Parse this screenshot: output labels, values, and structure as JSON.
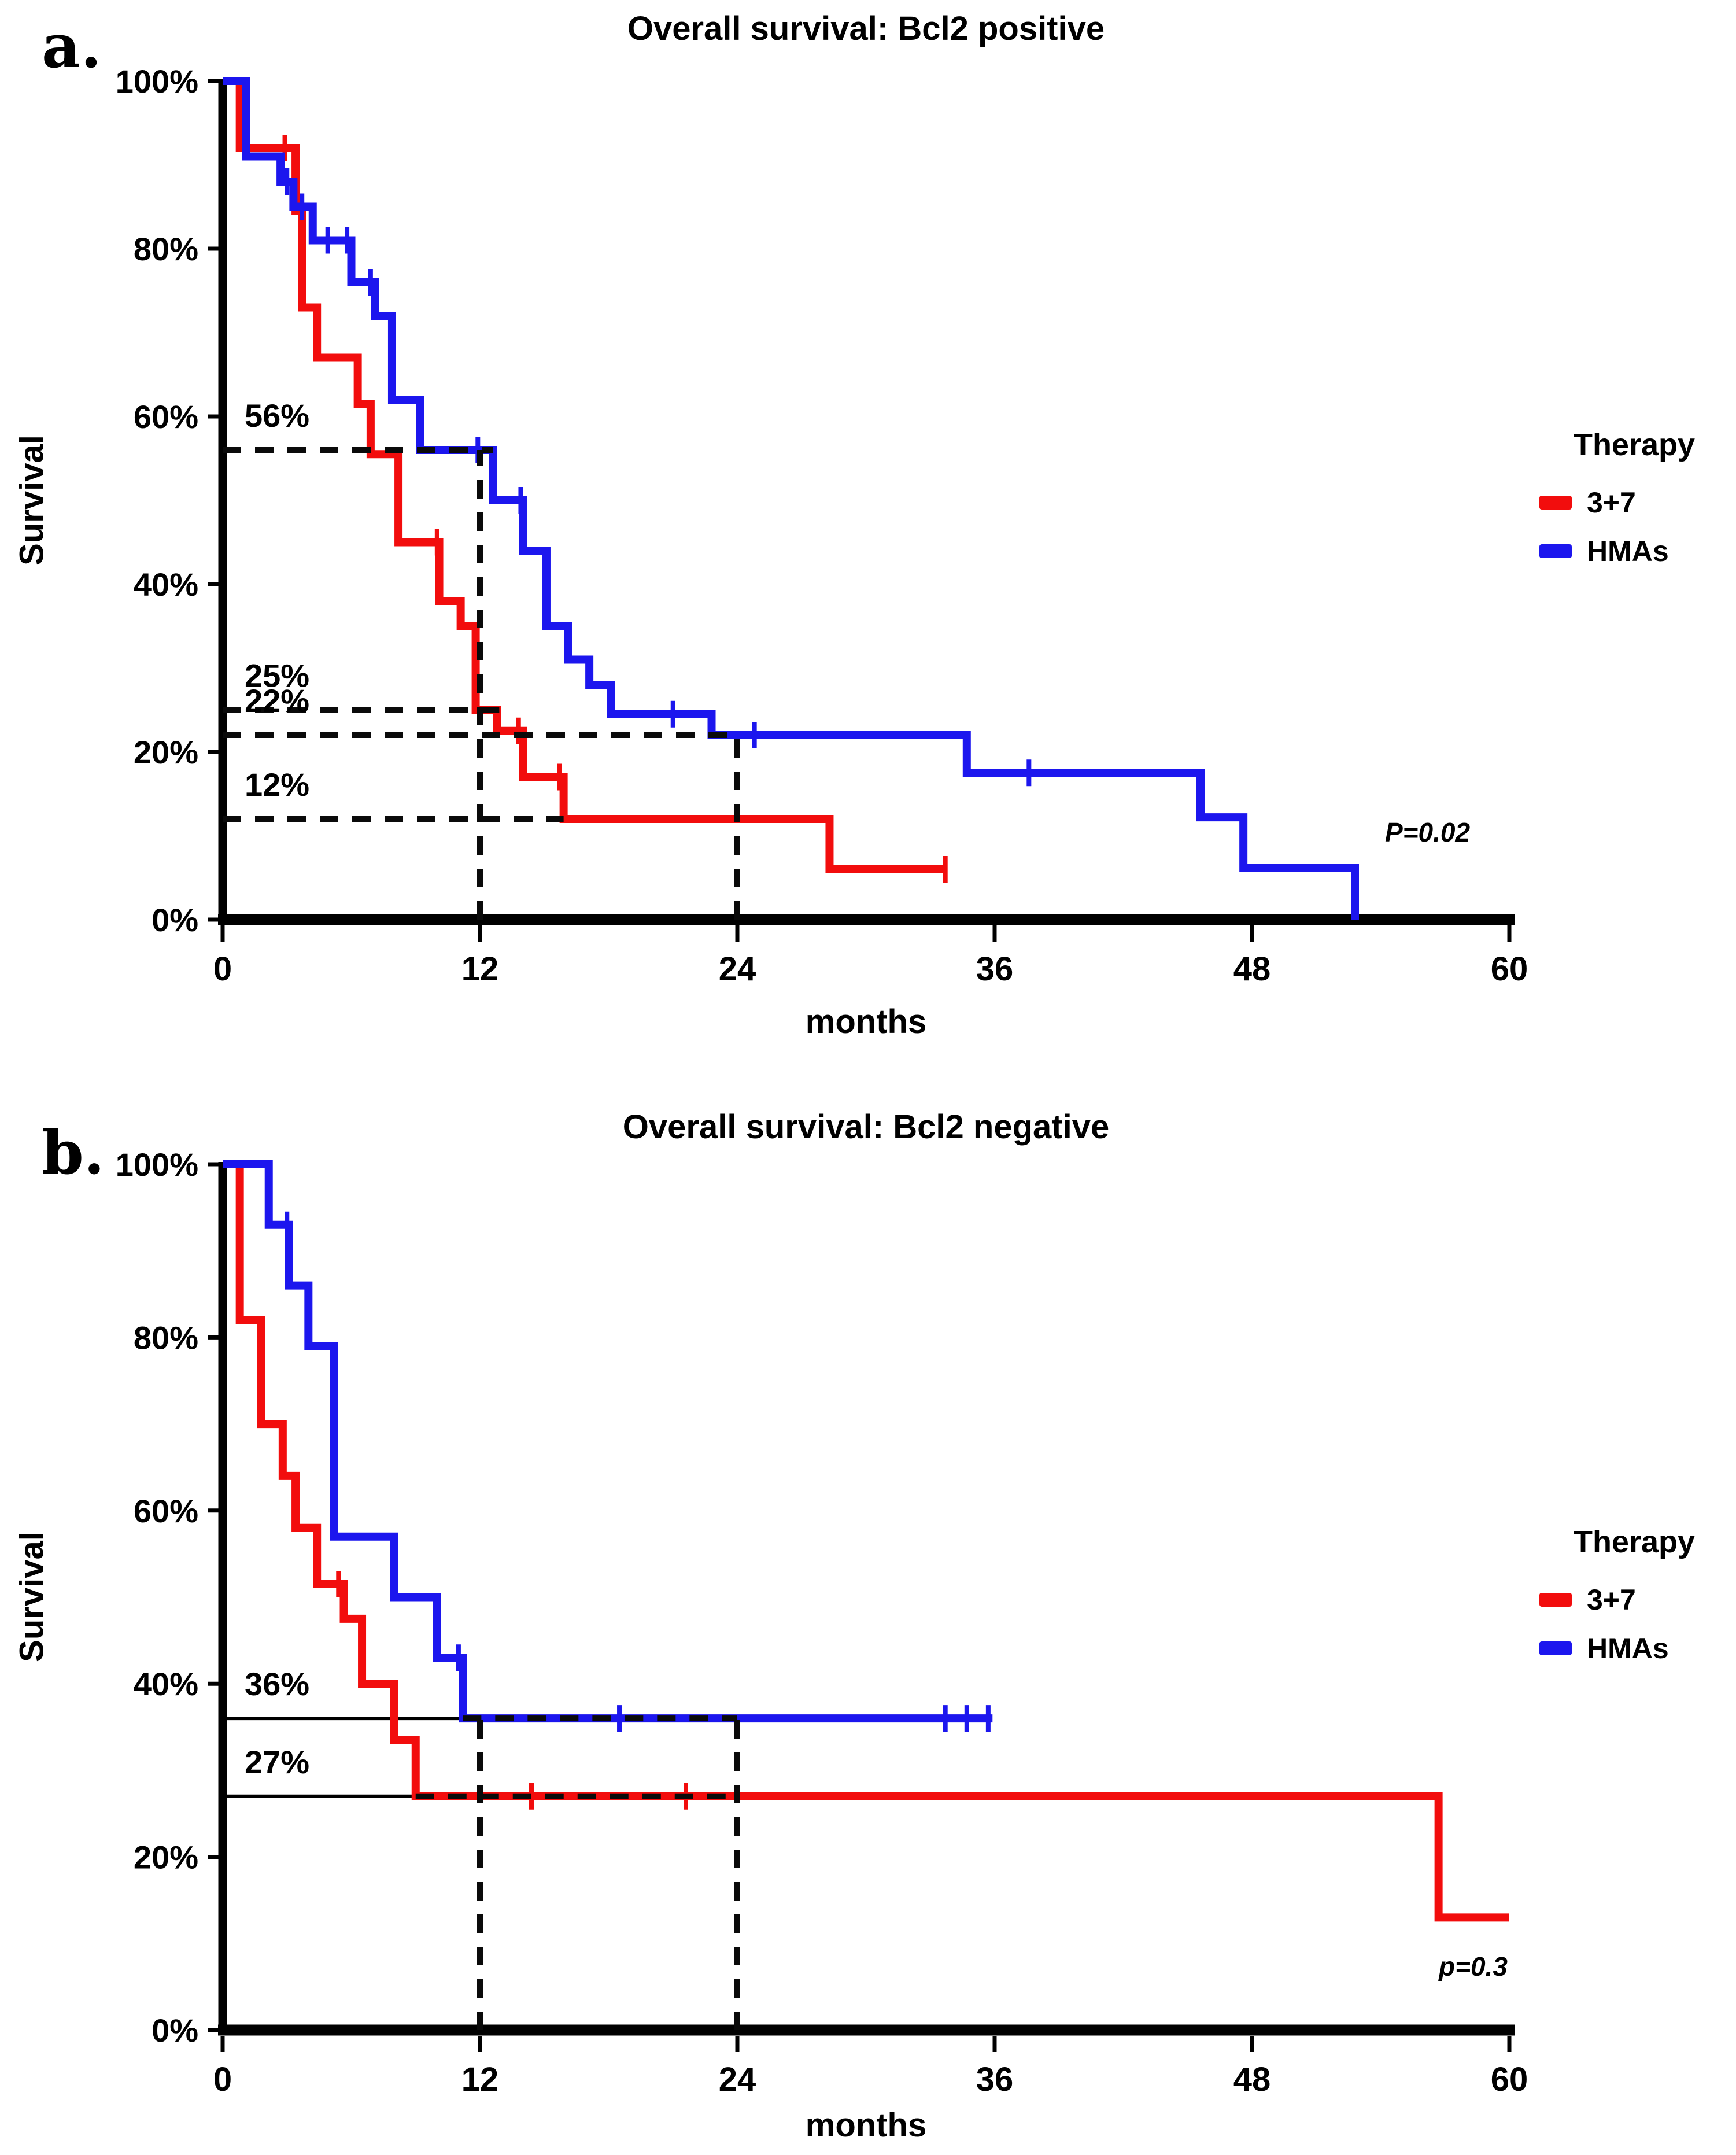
{
  "chart_data": [
    {
      "type": "line",
      "subtype": "kaplan_meier_step",
      "panel_letter": "a.",
      "title": "Overall survival: Bcl2 positive",
      "xlabel": "months",
      "ylabel": "Survival",
      "p_value": "P=0.02",
      "p_value_pos": {
        "month": 54.1,
        "pct": 10.6
      },
      "xlim": [
        0,
        60
      ],
      "ylim": [
        0,
        100
      ],
      "x_tick_values": [
        0,
        12,
        24,
        36,
        48,
        60
      ],
      "x_tick_labels": [
        "0",
        "12",
        "24",
        "36",
        "48",
        "60"
      ],
      "y_tick_values": [
        100,
        80,
        60,
        40,
        20,
        0
      ],
      "y_tick_labels": [
        "100%",
        "80%",
        "60%",
        "40%",
        "20%",
        "0%"
      ],
      "grid": false,
      "legend": {
        "title": "Therapy",
        "position": "right",
        "entries": [
          {
            "label": "3+7",
            "color": "#f20d0d"
          },
          {
            "label": "HMAs",
            "color": "#1c16ee"
          }
        ]
      },
      "series": [
        {
          "name": "3+7",
          "color": "#f20d0d",
          "steps": [
            [
              0,
              100
            ],
            [
              0.8,
              92
            ],
            [
              3.4,
              84.5
            ],
            [
              3.7,
              73
            ],
            [
              4.4,
              67
            ],
            [
              6.3,
              61.5
            ],
            [
              6.9,
              55.5
            ],
            [
              8.2,
              45
            ],
            [
              10.1,
              38
            ],
            [
              11.1,
              35
            ],
            [
              11.8,
              25
            ],
            [
              12.8,
              22.5
            ],
            [
              14,
              17
            ],
            [
              15.9,
              12
            ],
            [
              28.3,
              6
            ]
          ],
          "end_month": 33.7,
          "censor_ticks": [
            [
              2.9,
              92
            ],
            [
              10,
              45
            ],
            [
              13.8,
              22.5
            ],
            [
              15.7,
              17
            ],
            [
              33.7,
              6
            ]
          ]
        },
        {
          "name": "HMAs",
          "color": "#1c16ee",
          "steps": [
            [
              0,
              100
            ],
            [
              1.1,
              91
            ],
            [
              2.7,
              88
            ],
            [
              3.3,
              85
            ],
            [
              4.2,
              81
            ],
            [
              6,
              76
            ],
            [
              7.1,
              72
            ],
            [
              7.9,
              62
            ],
            [
              9.2,
              56
            ],
            [
              12.6,
              50
            ],
            [
              14,
              44
            ],
            [
              15.1,
              35
            ],
            [
              16.1,
              31
            ],
            [
              17.1,
              28
            ],
            [
              18.1,
              24.5
            ],
            [
              22.8,
              22
            ],
            [
              34.7,
              17.5
            ],
            [
              45.6,
              12.2
            ],
            [
              47.6,
              6.2
            ],
            [
              52.8,
              0
            ]
          ],
          "end_month": 52.8,
          "censor_ticks": [
            [
              3,
              88
            ],
            [
              3.7,
              85
            ],
            [
              4.9,
              81
            ],
            [
              5.8,
              81
            ],
            [
              6.9,
              76
            ],
            [
              11.9,
              56
            ],
            [
              13.9,
              50
            ],
            [
              21,
              24.5
            ],
            [
              24.8,
              22
            ],
            [
              37.6,
              17.5
            ]
          ]
        }
      ],
      "annotations": {
        "percent_labels": [
          {
            "text": "56%",
            "pct": 56
          },
          {
            "text": "25%",
            "pct": 25
          },
          {
            "text": "22%",
            "pct": 22
          },
          {
            "text": "12%",
            "pct": 12
          }
        ],
        "dashed_h": [
          {
            "pct": 56,
            "from_month": 0,
            "to_month": 12.6
          },
          {
            "pct": 25,
            "from_month": 0,
            "to_month": 12.9
          },
          {
            "pct": 22,
            "from_month": 0,
            "to_month": 24
          },
          {
            "pct": 12,
            "from_month": 0,
            "to_month": 15.9
          }
        ],
        "dashed_v": [
          {
            "month": 12,
            "from_pct": 0,
            "to_pct": 56
          },
          {
            "month": 24,
            "from_pct": 0,
            "to_pct": 22
          }
        ],
        "solid_h": []
      }
    },
    {
      "type": "line",
      "subtype": "kaplan_meier_step",
      "panel_letter": "b.",
      "title": "Overall survival: Bcl2 negative",
      "xlabel": "months",
      "ylabel": "Survival",
      "p_value": "p=0.3",
      "p_value_pos": {
        "month": 56.6,
        "pct": 7.5
      },
      "xlim": [
        0,
        60
      ],
      "ylim": [
        0,
        100
      ],
      "x_tick_values": [
        0,
        12,
        24,
        36,
        48,
        60
      ],
      "x_tick_labels": [
        "0",
        "12",
        "24",
        "36",
        "48",
        "60"
      ],
      "y_tick_values": [
        100,
        80,
        60,
        40,
        20,
        0
      ],
      "y_tick_labels": [
        "100%",
        "80%",
        "60%",
        "40%",
        "20%",
        "0%"
      ],
      "grid": false,
      "legend": {
        "title": "Therapy",
        "position": "right",
        "entries": [
          {
            "label": "3+7",
            "color": "#f20d0d"
          },
          {
            "label": "HMAs",
            "color": "#1c16ee"
          }
        ]
      },
      "series": [
        {
          "name": "3+7",
          "color": "#f20d0d",
          "steps": [
            [
              0,
              100
            ],
            [
              0.8,
              82
            ],
            [
              1.8,
              70
            ],
            [
              2.8,
              64
            ],
            [
              3.4,
              58
            ],
            [
              4.4,
              51.5
            ],
            [
              5.65,
              47.5
            ],
            [
              6.5,
              40
            ],
            [
              8,
              33.5
            ],
            [
              9,
              27
            ],
            [
              56.7,
              13
            ]
          ],
          "end_month": 60,
          "censor_ticks": [
            [
              5.4,
              51.5
            ],
            [
              14.4,
              27
            ],
            [
              21.6,
              27
            ]
          ]
        },
        {
          "name": "HMAs",
          "color": "#1c16ee",
          "steps": [
            [
              0,
              100
            ],
            [
              2.15,
              93
            ],
            [
              3.1,
              86
            ],
            [
              4,
              79
            ],
            [
              5.2,
              57
            ],
            [
              8,
              50
            ],
            [
              10,
              43
            ],
            [
              11.2,
              36
            ]
          ],
          "end_month": 35.9,
          "censor_ticks": [
            [
              3,
              93
            ],
            [
              11,
              43
            ],
            [
              18.5,
              36
            ],
            [
              33.7,
              36
            ],
            [
              34.7,
              36
            ],
            [
              35.7,
              36
            ]
          ]
        }
      ],
      "annotations": {
        "percent_labels": [
          {
            "text": "36%",
            "pct": 36
          },
          {
            "text": "27%",
            "pct": 27
          }
        ],
        "dashed_h": [
          {
            "pct": 36,
            "from_month": 11.2,
            "to_month": 24
          },
          {
            "pct": 27,
            "from_month": 9,
            "to_month": 24
          }
        ],
        "dashed_v": [
          {
            "month": 12,
            "from_pct": 0,
            "to_pct": 36
          },
          {
            "month": 24,
            "from_pct": 0,
            "to_pct": 36
          }
        ],
        "solid_h": [
          {
            "pct": 36,
            "from_month": 0,
            "to_month": 11.2
          },
          {
            "pct": 27,
            "from_month": 0,
            "to_month": 9
          }
        ]
      }
    }
  ]
}
